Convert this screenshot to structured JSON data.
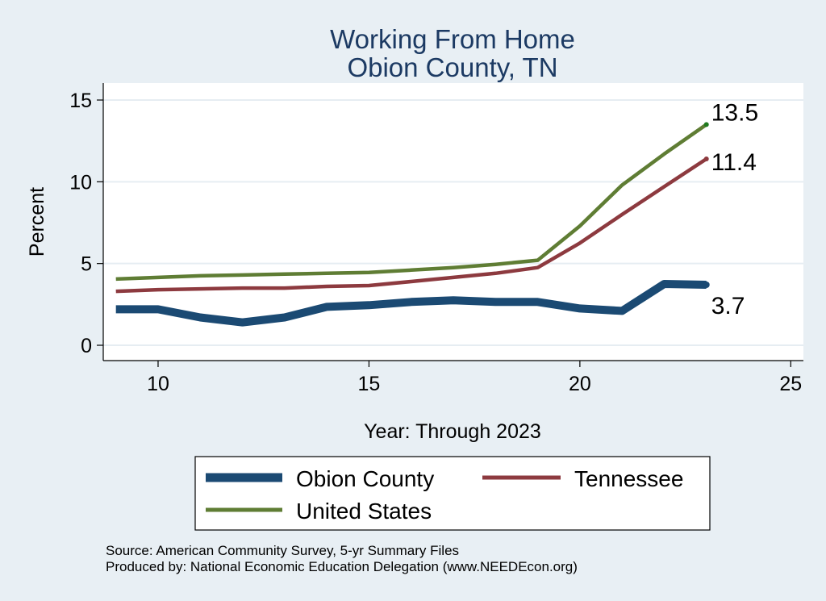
{
  "chart_data": {
    "type": "line",
    "title": [
      "Working From Home",
      "Obion County, TN"
    ],
    "xlabel": "Year: Through 2023",
    "ylabel": "Percent",
    "xlim": [
      8.7,
      25.3
    ],
    "ylim": [
      0,
      15
    ],
    "xticks": [
      10,
      15,
      20,
      25
    ],
    "yticks": [
      0,
      5,
      10,
      15
    ],
    "grid": true,
    "legend_position": "bottom",
    "x": [
      9,
      10,
      11,
      12,
      13,
      14,
      15,
      16,
      17,
      18,
      19,
      20,
      21,
      22,
      23
    ],
    "series": [
      {
        "name": "Obion County",
        "color": "#1b4a73",
        "values": [
          2.2,
          2.2,
          1.7,
          1.4,
          1.7,
          2.35,
          2.45,
          2.65,
          2.75,
          2.65,
          2.65,
          2.25,
          2.1,
          3.75,
          3.7
        ],
        "end_label": "3.7"
      },
      {
        "name": "Tennessee",
        "color": "#8d3a3f",
        "values": [
          3.3,
          3.4,
          3.45,
          3.5,
          3.5,
          3.6,
          3.65,
          3.9,
          4.15,
          4.4,
          4.75,
          6.25,
          8.0,
          9.7,
          11.4
        ],
        "end_label": "11.4"
      },
      {
        "name": "United States",
        "color": "#5f7d34",
        "values": [
          4.05,
          4.15,
          4.25,
          4.3,
          4.35,
          4.4,
          4.45,
          4.6,
          4.75,
          4.95,
          5.2,
          7.3,
          9.8,
          11.7,
          13.5
        ],
        "end_label": "13.5"
      }
    ],
    "notes": [
      "Source: American Community Survey, 5-yr Summary Files",
      "Produced by: National Economic Education Delegation (www.NEEDEcon.org)"
    ]
  }
}
